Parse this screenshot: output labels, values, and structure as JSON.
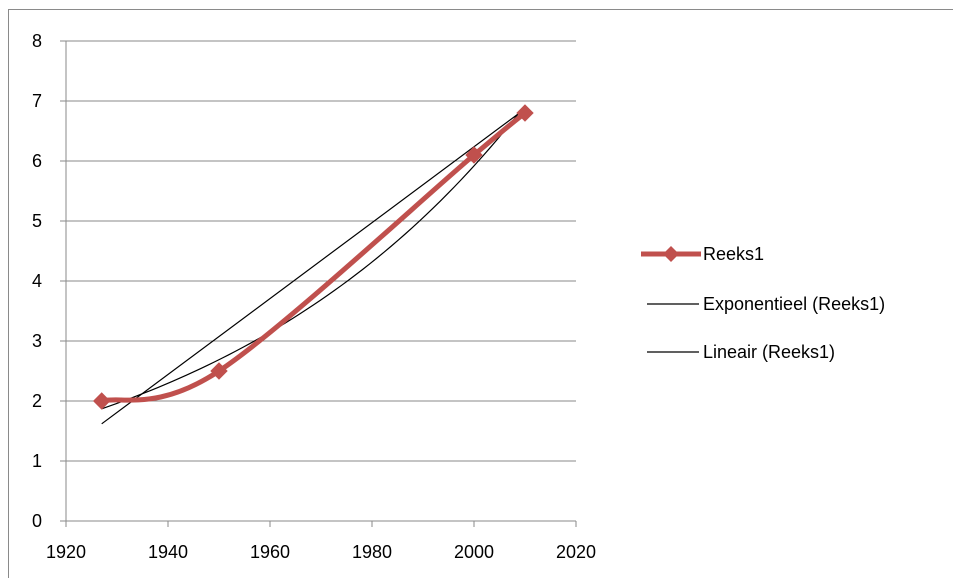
{
  "chart_data": {
    "type": "line",
    "title": "",
    "xlabel": "",
    "ylabel": "",
    "xlim": [
      1920,
      2020
    ],
    "ylim": [
      0,
      8
    ],
    "x_ticks": [
      1920,
      1940,
      1960,
      1980,
      2000,
      2020
    ],
    "y_ticks": [
      0,
      1,
      2,
      3,
      4,
      5,
      6,
      7,
      8
    ],
    "grid": "horizontal",
    "legend_position": "right",
    "series": [
      {
        "name": "Reeks1",
        "color": "#c0504d",
        "marker": "diamond",
        "smooth": true,
        "x": [
          1927,
          1950,
          2000,
          2010
        ],
        "y": [
          2.0,
          2.5,
          6.1,
          6.8
        ]
      }
    ],
    "trendlines": [
      {
        "name": "Exponentieel (Reeks1)",
        "kind": "exponential",
        "color": "#000000",
        "x_range": [
          1927,
          2010
        ],
        "y_end_values": [
          1.87,
          6.93
        ]
      },
      {
        "name": "Lineair (Reeks1)",
        "kind": "linear",
        "color": "#000000",
        "x_range": [
          1927,
          2010
        ],
        "y_end_values": [
          1.62,
          6.87
        ]
      }
    ]
  }
}
